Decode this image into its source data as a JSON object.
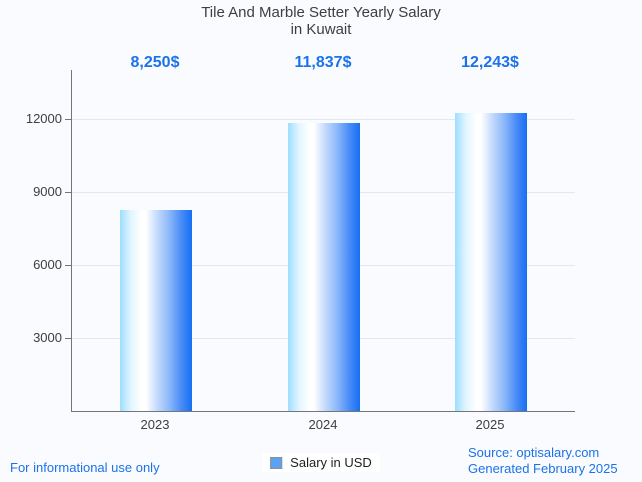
{
  "title": {
    "line1": "Tile And Marble Setter Yearly Salary",
    "line2": "in Kuwait"
  },
  "chart_data": {
    "type": "bar",
    "title": "Tile And Marble Setter Yearly Salary in Kuwait",
    "categories": [
      "2023",
      "2024",
      "2025"
    ],
    "values": [
      8250,
      11837,
      12243
    ],
    "value_labels": [
      "8,250$",
      "11,837$",
      "12,243$"
    ],
    "series_name": "Salary in USD",
    "xlabel": "",
    "ylabel": "",
    "yticks": [
      3000,
      6000,
      9000,
      12000
    ],
    "ylim": [
      0,
      14000
    ],
    "grid": true,
    "legend_position": "bottom",
    "bar_color_gradient": [
      "#9fdeff",
      "#ffffff",
      "#156ff3"
    ]
  },
  "legend": {
    "label": "Salary in USD",
    "swatch_color": "#5da2f2",
    "swatch_border": "#8a8f98"
  },
  "footer": {
    "left": "For informational use only",
    "source": "Source: optisalary.com",
    "generated": "Generated February 2025"
  },
  "colors": {
    "accent_blue": "#1a73e8",
    "title_text": "#3c4043",
    "axis_text": "#3c4043",
    "axis_line": "#757575",
    "gridline": "#e4e7ed",
    "background": "#fafbfe",
    "legend_text": "#1f1f1f"
  }
}
